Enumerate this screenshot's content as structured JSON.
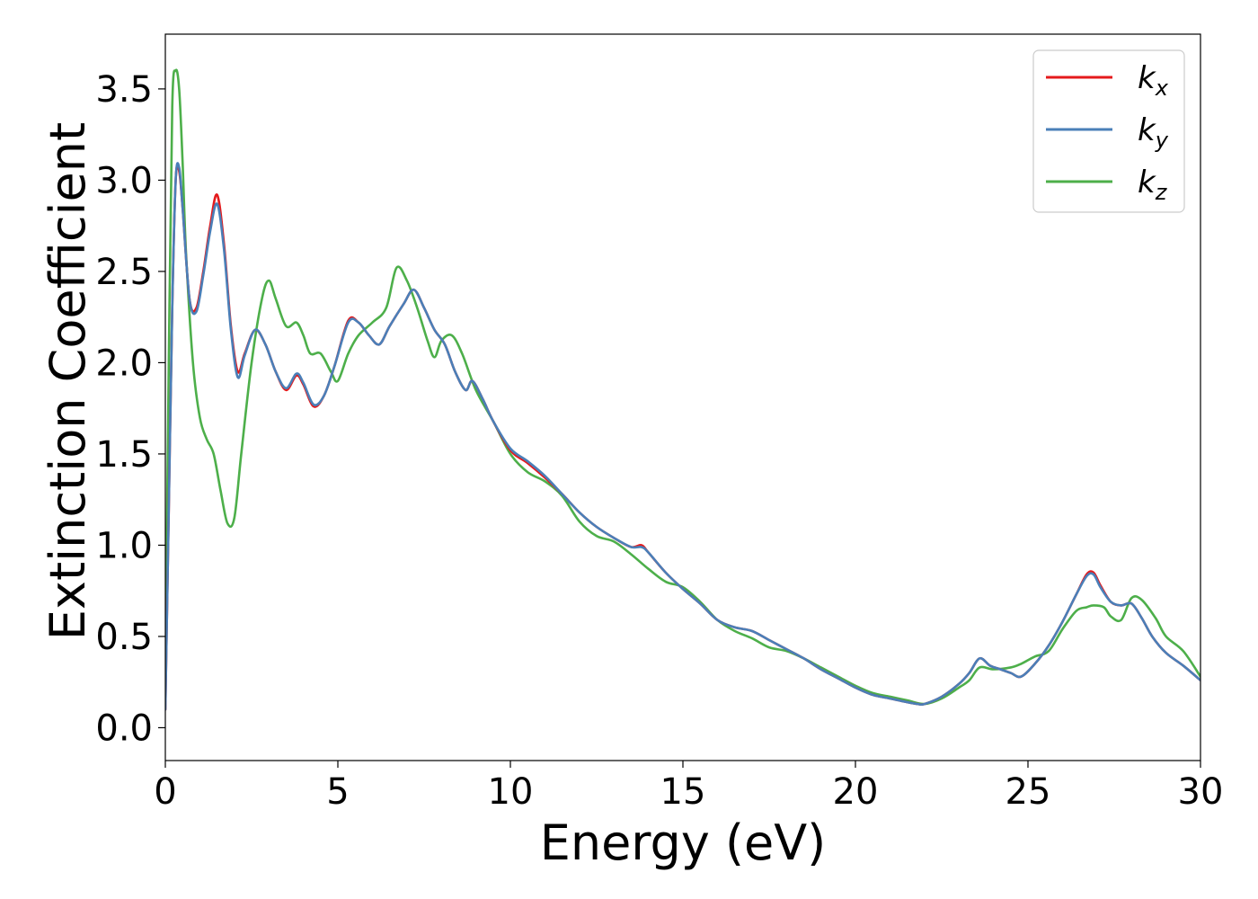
{
  "chart_data": {
    "type": "line",
    "xlabel": "Energy (eV)",
    "ylabel": "Extinction Coefficient",
    "xlim": [
      0,
      30
    ],
    "ylim": [
      -0.18,
      3.8
    ],
    "xticks": [
      0,
      5,
      10,
      15,
      20,
      25,
      30
    ],
    "xtick_labels": [
      "0",
      "5",
      "10",
      "15",
      "20",
      "25",
      "30"
    ],
    "yticks": [
      0.0,
      0.5,
      1.0,
      1.5,
      2.0,
      2.5,
      3.0,
      3.5
    ],
    "ytick_labels": [
      "0.0",
      "0.5",
      "1.0",
      "1.5",
      "2.0",
      "2.5",
      "3.0",
      "3.5"
    ],
    "grid": false,
    "legend_position": "top-right",
    "series": [
      {
        "name": "k_x",
        "label_base": "k",
        "label_sub": "x",
        "color": "#e41a1c",
        "x": [
          0,
          0.1,
          0.2,
          0.3,
          0.4,
          0.5,
          0.7,
          0.9,
          1.1,
          1.3,
          1.5,
          1.7,
          1.9,
          2.1,
          2.3,
          2.6,
          2.9,
          3.2,
          3.5,
          3.8,
          4.0,
          4.3,
          4.6,
          4.9,
          5.3,
          5.6,
          5.9,
          6.2,
          6.5,
          6.9,
          7.2,
          7.5,
          7.8,
          8.1,
          8.4,
          8.7,
          8.9,
          9.2,
          9.5,
          10.0,
          10.5,
          11.0,
          11.5,
          12.0,
          12.5,
          13.0,
          13.5,
          13.8,
          14.0,
          14.5,
          15.0,
          15.5,
          16.0,
          16.5,
          17.0,
          17.5,
          18.0,
          18.5,
          19.0,
          19.5,
          20.0,
          20.5,
          21.0,
          21.5,
          21.8,
          22.0,
          22.5,
          23.0,
          23.3,
          23.6,
          23.9,
          24.2,
          24.5,
          24.8,
          25.2,
          25.6,
          26.0,
          26.4,
          26.7,
          26.9,
          27.1,
          27.4,
          27.7,
          28.0,
          28.3,
          28.6,
          29.0,
          29.5,
          30.0
        ],
        "y": [
          0.1,
          1.2,
          2.3,
          3.0,
          3.05,
          2.85,
          2.35,
          2.3,
          2.5,
          2.75,
          2.92,
          2.65,
          2.2,
          1.95,
          2.05,
          2.18,
          2.1,
          1.95,
          1.85,
          1.93,
          1.88,
          1.76,
          1.82,
          1.98,
          2.23,
          2.22,
          2.15,
          2.1,
          2.2,
          2.32,
          2.4,
          2.3,
          2.18,
          2.1,
          1.95,
          1.85,
          1.9,
          1.8,
          1.68,
          1.52,
          1.45,
          1.37,
          1.28,
          1.18,
          1.1,
          1.04,
          0.99,
          1.0,
          0.96,
          0.85,
          0.76,
          0.68,
          0.59,
          0.55,
          0.53,
          0.48,
          0.43,
          0.38,
          0.32,
          0.27,
          0.22,
          0.18,
          0.16,
          0.14,
          0.13,
          0.13,
          0.17,
          0.24,
          0.3,
          0.38,
          0.34,
          0.32,
          0.3,
          0.28,
          0.35,
          0.45,
          0.58,
          0.73,
          0.84,
          0.85,
          0.78,
          0.69,
          0.67,
          0.68,
          0.6,
          0.5,
          0.41,
          0.34,
          0.26
        ]
      },
      {
        "name": "k_y",
        "label_base": "k",
        "label_sub": "y",
        "color": "#4a7fb8",
        "x": [
          0,
          0.1,
          0.2,
          0.3,
          0.4,
          0.5,
          0.7,
          0.9,
          1.1,
          1.3,
          1.5,
          1.7,
          1.9,
          2.1,
          2.3,
          2.6,
          2.9,
          3.2,
          3.5,
          3.8,
          4.0,
          4.3,
          4.6,
          4.9,
          5.3,
          5.6,
          5.9,
          6.2,
          6.5,
          6.9,
          7.2,
          7.5,
          7.8,
          8.1,
          8.4,
          8.7,
          8.9,
          9.2,
          9.5,
          10.0,
          10.5,
          11.0,
          11.5,
          12.0,
          12.5,
          13.0,
          13.5,
          13.8,
          14.0,
          14.5,
          15.0,
          15.5,
          16.0,
          16.5,
          17.0,
          17.5,
          18.0,
          18.5,
          19.0,
          19.5,
          20.0,
          20.5,
          21.0,
          21.5,
          21.8,
          22.0,
          22.5,
          23.0,
          23.3,
          23.6,
          23.9,
          24.2,
          24.5,
          24.8,
          25.2,
          25.6,
          26.0,
          26.4,
          26.7,
          26.9,
          27.1,
          27.4,
          27.7,
          28.0,
          28.3,
          28.6,
          29.0,
          29.5,
          30.0
        ],
        "y": [
          0.1,
          1.2,
          2.3,
          3.0,
          3.07,
          2.85,
          2.35,
          2.28,
          2.48,
          2.72,
          2.87,
          2.62,
          2.18,
          1.92,
          2.04,
          2.18,
          2.1,
          1.95,
          1.86,
          1.94,
          1.89,
          1.77,
          1.82,
          1.98,
          2.22,
          2.22,
          2.15,
          2.1,
          2.2,
          2.32,
          2.4,
          2.3,
          2.18,
          2.1,
          1.95,
          1.85,
          1.9,
          1.8,
          1.68,
          1.53,
          1.46,
          1.38,
          1.28,
          1.18,
          1.1,
          1.04,
          0.99,
          0.99,
          0.96,
          0.85,
          0.76,
          0.68,
          0.59,
          0.55,
          0.53,
          0.48,
          0.43,
          0.38,
          0.32,
          0.27,
          0.22,
          0.18,
          0.16,
          0.14,
          0.13,
          0.13,
          0.17,
          0.24,
          0.3,
          0.38,
          0.34,
          0.32,
          0.3,
          0.28,
          0.35,
          0.45,
          0.58,
          0.73,
          0.83,
          0.84,
          0.77,
          0.69,
          0.67,
          0.68,
          0.6,
          0.5,
          0.41,
          0.34,
          0.26
        ]
      },
      {
        "name": "k_z",
        "label_base": "k",
        "label_sub": "z",
        "color": "#4daf4a",
        "x": [
          0,
          0.1,
          0.2,
          0.3,
          0.4,
          0.5,
          0.6,
          0.8,
          1.0,
          1.2,
          1.4,
          1.6,
          1.8,
          2.0,
          2.2,
          2.5,
          2.8,
          3.0,
          3.2,
          3.5,
          3.8,
          4.0,
          4.2,
          4.5,
          4.8,
          5.0,
          5.3,
          5.6,
          6.0,
          6.4,
          6.7,
          7.0,
          7.3,
          7.6,
          7.8,
          8.0,
          8.3,
          8.6,
          9.0,
          9.5,
          10.0,
          10.5,
          11.0,
          11.5,
          12.0,
          12.5,
          13.0,
          13.5,
          14.0,
          14.5,
          15.0,
          15.5,
          16.0,
          16.5,
          17.0,
          17.5,
          18.0,
          18.5,
          19.0,
          19.5,
          20.0,
          20.5,
          21.0,
          21.5,
          22.0,
          22.5,
          23.0,
          23.3,
          23.6,
          24.0,
          24.5,
          24.8,
          25.2,
          25.6,
          26.0,
          26.4,
          26.7,
          26.9,
          27.2,
          27.4,
          27.7,
          28.0,
          28.3,
          28.7,
          29.0,
          29.5,
          30.0
        ],
        "y": [
          0.25,
          2.0,
          3.4,
          3.6,
          3.5,
          3.1,
          2.6,
          2.0,
          1.7,
          1.58,
          1.5,
          1.3,
          1.12,
          1.15,
          1.5,
          2.0,
          2.35,
          2.45,
          2.35,
          2.2,
          2.22,
          2.15,
          2.05,
          2.05,
          1.95,
          1.9,
          2.05,
          2.15,
          2.22,
          2.3,
          2.52,
          2.45,
          2.3,
          2.12,
          2.03,
          2.12,
          2.15,
          2.05,
          1.85,
          1.68,
          1.5,
          1.4,
          1.35,
          1.27,
          1.13,
          1.05,
          1.02,
          0.95,
          0.87,
          0.8,
          0.77,
          0.69,
          0.59,
          0.53,
          0.49,
          0.44,
          0.42,
          0.38,
          0.33,
          0.28,
          0.23,
          0.19,
          0.17,
          0.15,
          0.13,
          0.16,
          0.22,
          0.26,
          0.33,
          0.32,
          0.33,
          0.35,
          0.39,
          0.42,
          0.54,
          0.64,
          0.66,
          0.67,
          0.66,
          0.61,
          0.59,
          0.71,
          0.7,
          0.6,
          0.5,
          0.42,
          0.28
        ]
      }
    ]
  }
}
